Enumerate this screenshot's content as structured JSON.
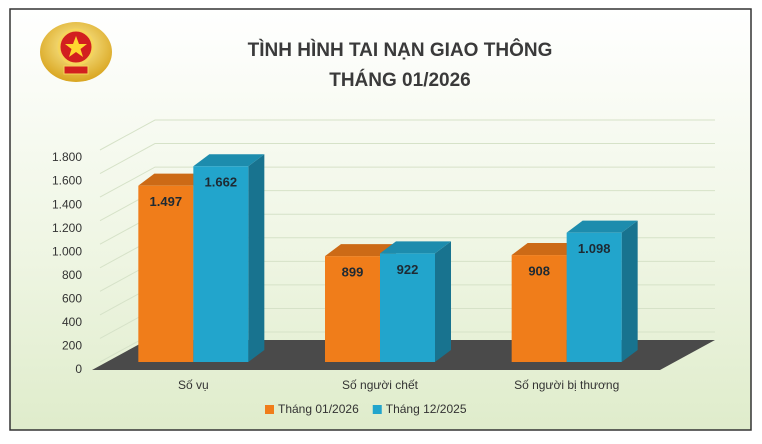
{
  "chart_data": {
    "type": "bar3d",
    "title": "TÌNH HÌNH TAI NẠN GIAO THÔNG",
    "subtitle": "THÁNG 01/2026",
    "categories": [
      "Số vụ",
      "Số người chết",
      "Số người bị thương"
    ],
    "series": [
      {
        "name": "Tháng 01/2026",
        "color": "#f07d1a",
        "values": [
          1497,
          899,
          908
        ],
        "value_labels": [
          "1.497",
          "899",
          "908"
        ]
      },
      {
        "name": "Tháng 12/2025",
        "color": "#22a5cc",
        "values": [
          1662,
          922,
          1098
        ],
        "value_labels": [
          "1.662",
          "922",
          "1.098"
        ]
      }
    ],
    "ylim": [
      0,
      1800
    ],
    "yticks": [
      0,
      200,
      400,
      600,
      800,
      {
        "value": 1000,
        "label": "1.000"
      },
      {
        "value": 1200,
        "label": "1.200"
      },
      {
        "value": 1400,
        "label": "1.400"
      },
      {
        "value": 1600,
        "label": "1.600"
      },
      {
        "value": 1800,
        "label": "1.800"
      }
    ],
    "grid": true,
    "legend": "bottom"
  }
}
